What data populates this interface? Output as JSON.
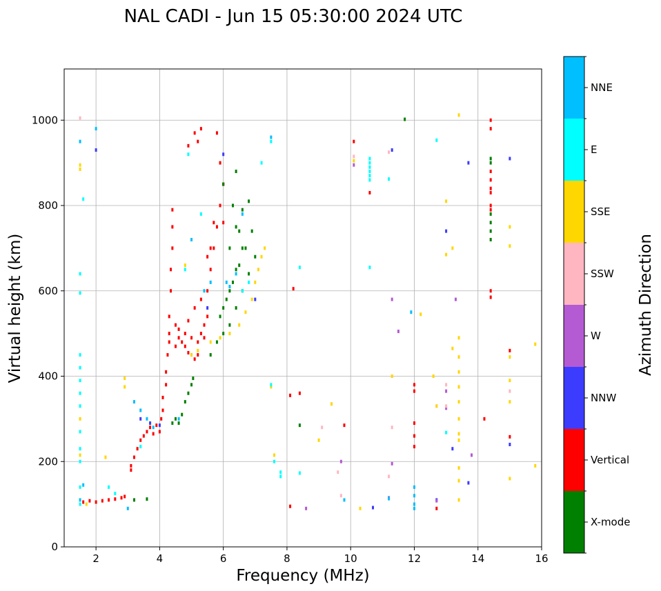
{
  "chart_data": {
    "type": "scatter",
    "title": "NAL CADI - Jun 15 05:30:00 2024 UTC",
    "xlabel": "Frequency (MHz)",
    "ylabel": "Virtual height (km)",
    "xlim": [
      1,
      16
    ],
    "ylim": [
      0,
      1120
    ],
    "x_ticks": [
      2,
      4,
      6,
      8,
      10,
      12,
      14,
      16
    ],
    "y_ticks": [
      0,
      200,
      400,
      600,
      800,
      1000
    ],
    "grid": true,
    "colorbar": {
      "label": "Azimuth Direction",
      "entries": [
        {
          "name": "X-mode",
          "color": "#008000"
        },
        {
          "name": "Vertical",
          "color": "#ff0000"
        },
        {
          "name": "NNW",
          "color": "#3c3cff"
        },
        {
          "name": "W",
          "color": "#b45ad2"
        },
        {
          "name": "SSW",
          "color": "#ffb6c1"
        },
        {
          "name": "SSE",
          "color": "#ffd700"
        },
        {
          "name": "E",
          "color": "#00ffff"
        },
        {
          "name": "NNE",
          "color": "#00bfff"
        }
      ]
    },
    "series": [
      {
        "name": "Vertical",
        "color": "#ff0000",
        "points": [
          [
            1.6,
            105
          ],
          [
            1.8,
            108
          ],
          [
            2.0,
            105
          ],
          [
            2.2,
            108
          ],
          [
            2.4,
            110
          ],
          [
            2.6,
            112
          ],
          [
            2.8,
            115
          ],
          [
            2.9,
            118
          ],
          [
            3.1,
            180
          ],
          [
            3.1,
            190
          ],
          [
            3.2,
            210
          ],
          [
            3.3,
            230
          ],
          [
            3.4,
            250
          ],
          [
            3.5,
            260
          ],
          [
            3.6,
            270
          ],
          [
            3.7,
            280
          ],
          [
            3.8,
            265
          ],
          [
            3.9,
            285
          ],
          [
            4.0,
            270
          ],
          [
            4.05,
            300
          ],
          [
            4.1,
            320
          ],
          [
            4.1,
            350
          ],
          [
            4.2,
            380
          ],
          [
            4.2,
            410
          ],
          [
            4.25,
            450
          ],
          [
            4.3,
            480
          ],
          [
            4.3,
            500
          ],
          [
            4.3,
            540
          ],
          [
            4.35,
            600
          ],
          [
            4.35,
            650
          ],
          [
            4.4,
            700
          ],
          [
            4.4,
            750
          ],
          [
            4.4,
            790
          ],
          [
            4.5,
            470
          ],
          [
            4.6,
            490
          ],
          [
            4.7,
            480
          ],
          [
            4.8,
            470
          ],
          [
            4.9,
            455
          ],
          [
            5.0,
            450
          ],
          [
            5.1,
            440
          ],
          [
            5.2,
            450
          ],
          [
            5.3,
            500
          ],
          [
            5.4,
            520
          ],
          [
            5.5,
            540
          ],
          [
            4.5,
            520
          ],
          [
            4.6,
            510
          ],
          [
            4.8,
            500
          ],
          [
            5.0,
            490
          ],
          [
            5.2,
            480
          ],
          [
            5.4,
            490
          ],
          [
            4.9,
            530
          ],
          [
            5.1,
            560
          ],
          [
            5.3,
            580
          ],
          [
            5.5,
            600
          ],
          [
            5.6,
            650
          ],
          [
            5.7,
            700
          ],
          [
            5.8,
            750
          ],
          [
            5.9,
            800
          ],
          [
            6.0,
            850
          ],
          [
            5.6,
            700
          ],
          [
            5.5,
            680
          ],
          [
            5.7,
            760
          ],
          [
            5.9,
            900
          ],
          [
            5.8,
            970
          ],
          [
            5.3,
            980
          ],
          [
            5.2,
            950
          ],
          [
            4.9,
            940
          ],
          [
            5.1,
            970
          ],
          [
            6.0,
            850
          ],
          [
            6.0,
            760
          ],
          [
            8.1,
            355
          ],
          [
            8.4,
            360
          ],
          [
            8.2,
            605
          ],
          [
            9.8,
            285
          ],
          [
            10.1,
            950
          ],
          [
            10.6,
            830
          ],
          [
            12.0,
            380
          ],
          [
            12.0,
            365
          ],
          [
            12.0,
            290
          ],
          [
            12.0,
            260
          ],
          [
            12.0,
            235
          ],
          [
            12.7,
            90
          ],
          [
            14.2,
            300
          ],
          [
            14.4,
            1000
          ],
          [
            14.4,
            980
          ],
          [
            14.4,
            880
          ],
          [
            14.4,
            860
          ],
          [
            14.4,
            840
          ],
          [
            14.4,
            830
          ],
          [
            14.4,
            800
          ],
          [
            14.4,
            790
          ],
          [
            14.4,
            600
          ],
          [
            14.4,
            585
          ],
          [
            15.0,
            460
          ],
          [
            15.0,
            258
          ],
          [
            8.1,
            95
          ]
        ]
      },
      {
        "name": "X-mode",
        "color": "#008000",
        "points": [
          [
            3.2,
            110
          ],
          [
            3.6,
            112
          ],
          [
            4.4,
            290
          ],
          [
            4.5,
            300
          ],
          [
            4.6,
            290
          ],
          [
            4.7,
            310
          ],
          [
            4.8,
            340
          ],
          [
            4.9,
            360
          ],
          [
            5.0,
            380
          ],
          [
            5.05,
            395
          ],
          [
            5.6,
            450
          ],
          [
            5.8,
            480
          ],
          [
            6.0,
            500
          ],
          [
            6.2,
            520
          ],
          [
            6.4,
            560
          ],
          [
            6.6,
            600
          ],
          [
            6.8,
            640
          ],
          [
            7.0,
            680
          ],
          [
            5.9,
            540
          ],
          [
            6.1,
            580
          ],
          [
            6.3,
            620
          ],
          [
            6.5,
            660
          ],
          [
            6.7,
            700
          ],
          [
            6.9,
            740
          ],
          [
            6.2,
            700
          ],
          [
            6.4,
            750
          ],
          [
            6.6,
            790
          ],
          [
            6.8,
            810
          ],
          [
            6.0,
            560
          ],
          [
            6.2,
            600
          ],
          [
            6.4,
            650
          ],
          [
            6.6,
            700
          ],
          [
            6.5,
            740
          ],
          [
            6.3,
            800
          ],
          [
            6.0,
            850
          ],
          [
            6.4,
            880
          ],
          [
            8.4,
            285
          ],
          [
            11.7,
            1002
          ],
          [
            14.4,
            780
          ],
          [
            14.4,
            760
          ],
          [
            14.4,
            740
          ],
          [
            14.4,
            720
          ],
          [
            14.4,
            900
          ],
          [
            14.4,
            910
          ]
        ]
      },
      {
        "name": "NNW",
        "color": "#3c3cff",
        "points": [
          [
            2.0,
            930
          ],
          [
            3.4,
            300
          ],
          [
            3.7,
            290
          ],
          [
            4.0,
            285
          ],
          [
            5.5,
            560
          ],
          [
            6.0,
            920
          ],
          [
            7.0,
            580
          ],
          [
            11.3,
            930
          ],
          [
            13.0,
            740
          ],
          [
            13.2,
            230
          ],
          [
            13.7,
            900
          ],
          [
            13.7,
            150
          ],
          [
            15.0,
            910
          ],
          [
            15.0,
            240
          ],
          [
            10.7,
            92
          ],
          [
            12.7,
            110
          ]
        ]
      },
      {
        "name": "W",
        "color": "#b45ad2",
        "points": [
          [
            8.6,
            90
          ],
          [
            9.7,
            200
          ],
          [
            10.1,
            895
          ],
          [
            11.3,
            580
          ],
          [
            11.5,
            505
          ],
          [
            11.3,
            195
          ],
          [
            12.7,
            108
          ],
          [
            13.0,
            325
          ],
          [
            13.0,
            365
          ],
          [
            13.3,
            580
          ],
          [
            13.8,
            215
          ],
          [
            11.2,
            115
          ]
        ]
      },
      {
        "name": "SSW",
        "color": "#ffb6c1",
        "points": [
          [
            9.1,
            280
          ],
          [
            9.6,
            175
          ],
          [
            9.7,
            120
          ],
          [
            10.1,
            915
          ],
          [
            11.2,
            925
          ],
          [
            11.3,
            280
          ],
          [
            11.2,
            165
          ],
          [
            12.7,
            330
          ],
          [
            13.0,
            380
          ],
          [
            13.0,
            330
          ],
          [
            15.0,
            365
          ],
          [
            1.5,
            1005
          ]
        ]
      },
      {
        "name": "SSE",
        "color": "#ffd700",
        "points": [
          [
            1.5,
            895
          ],
          [
            1.5,
            885
          ],
          [
            1.5,
            300
          ],
          [
            1.5,
            215
          ],
          [
            1.7,
            100
          ],
          [
            2.3,
            210
          ],
          [
            2.9,
            395
          ],
          [
            2.9,
            375
          ],
          [
            5.0,
            450
          ],
          [
            5.2,
            460
          ],
          [
            5.6,
            480
          ],
          [
            5.9,
            490
          ],
          [
            6.2,
            500
          ],
          [
            6.5,
            520
          ],
          [
            6.7,
            550
          ],
          [
            6.9,
            580
          ],
          [
            7.0,
            620
          ],
          [
            7.1,
            650
          ],
          [
            7.2,
            680
          ],
          [
            7.3,
            700
          ],
          [
            4.8,
            660
          ],
          [
            7.5,
            375
          ],
          [
            7.6,
            215
          ],
          [
            9.0,
            250
          ],
          [
            9.4,
            335
          ],
          [
            10.1,
            905
          ],
          [
            10.3,
            90
          ],
          [
            11.3,
            400
          ],
          [
            12.2,
            545
          ],
          [
            12.6,
            400
          ],
          [
            12.7,
            330
          ],
          [
            13.0,
            810
          ],
          [
            13.0,
            685
          ],
          [
            13.2,
            700
          ],
          [
            13.2,
            465
          ],
          [
            13.4,
            1012
          ],
          [
            13.4,
            490
          ],
          [
            13.4,
            445
          ],
          [
            13.4,
            410
          ],
          [
            13.4,
            375
          ],
          [
            13.4,
            340
          ],
          [
            13.4,
            300
          ],
          [
            13.4,
            265
          ],
          [
            13.4,
            250
          ],
          [
            13.4,
            185
          ],
          [
            13.4,
            155
          ],
          [
            13.4,
            110
          ],
          [
            15.0,
            750
          ],
          [
            15.0,
            705
          ],
          [
            15.0,
            445
          ],
          [
            15.0,
            390
          ],
          [
            15.0,
            340
          ],
          [
            15.0,
            160
          ],
          [
            15.8,
            475
          ],
          [
            15.8,
            190
          ]
        ]
      },
      {
        "name": "E",
        "color": "#00ffff",
        "points": [
          [
            1.5,
            450
          ],
          [
            1.5,
            420
          ],
          [
            1.5,
            390
          ],
          [
            1.5,
            360
          ],
          [
            1.5,
            330
          ],
          [
            1.5,
            270
          ],
          [
            1.5,
            230
          ],
          [
            1.5,
            200
          ],
          [
            1.5,
            140
          ],
          [
            1.5,
            100
          ],
          [
            1.6,
            815
          ],
          [
            1.5,
            640
          ],
          [
            1.5,
            595
          ],
          [
            2.4,
            140
          ],
          [
            2.6,
            125
          ],
          [
            3.4,
            235
          ],
          [
            4.8,
            650
          ],
          [
            4.9,
            920
          ],
          [
            5.3,
            780
          ],
          [
            6.6,
            600
          ],
          [
            6.8,
            620
          ],
          [
            7.2,
            900
          ],
          [
            7.5,
            950
          ],
          [
            7.5,
            380
          ],
          [
            7.6,
            200
          ],
          [
            7.8,
            175
          ],
          [
            7.8,
            165
          ],
          [
            8.4,
            655
          ],
          [
            8.4,
            173
          ],
          [
            10.6,
            910
          ],
          [
            10.6,
            900
          ],
          [
            10.6,
            890
          ],
          [
            10.6,
            880
          ],
          [
            10.6,
            870
          ],
          [
            10.6,
            860
          ],
          [
            10.6,
            655
          ],
          [
            11.2,
            862
          ],
          [
            12.7,
            953
          ],
          [
            13.0,
            268
          ]
        ]
      },
      {
        "name": "NNE",
        "color": "#00bfff",
        "points": [
          [
            1.5,
            950
          ],
          [
            1.5,
            110
          ],
          [
            1.6,
            145
          ],
          [
            2.0,
            980
          ],
          [
            3.0,
            90
          ],
          [
            3.2,
            340
          ],
          [
            3.4,
            320
          ],
          [
            3.6,
            300
          ],
          [
            3.8,
            280
          ],
          [
            4.6,
            300
          ],
          [
            5.0,
            720
          ],
          [
            5.4,
            600
          ],
          [
            5.6,
            620
          ],
          [
            6.2,
            610
          ],
          [
            6.4,
            640
          ],
          [
            6.6,
            780
          ],
          [
            7.5,
            960
          ],
          [
            9.8,
            110
          ],
          [
            11.2,
            113
          ],
          [
            11.9,
            550
          ],
          [
            12.0,
            140
          ],
          [
            12.0,
            120
          ],
          [
            12.0,
            100
          ],
          [
            12.0,
            90
          ],
          [
            6.1,
            620
          ]
        ]
      }
    ]
  }
}
